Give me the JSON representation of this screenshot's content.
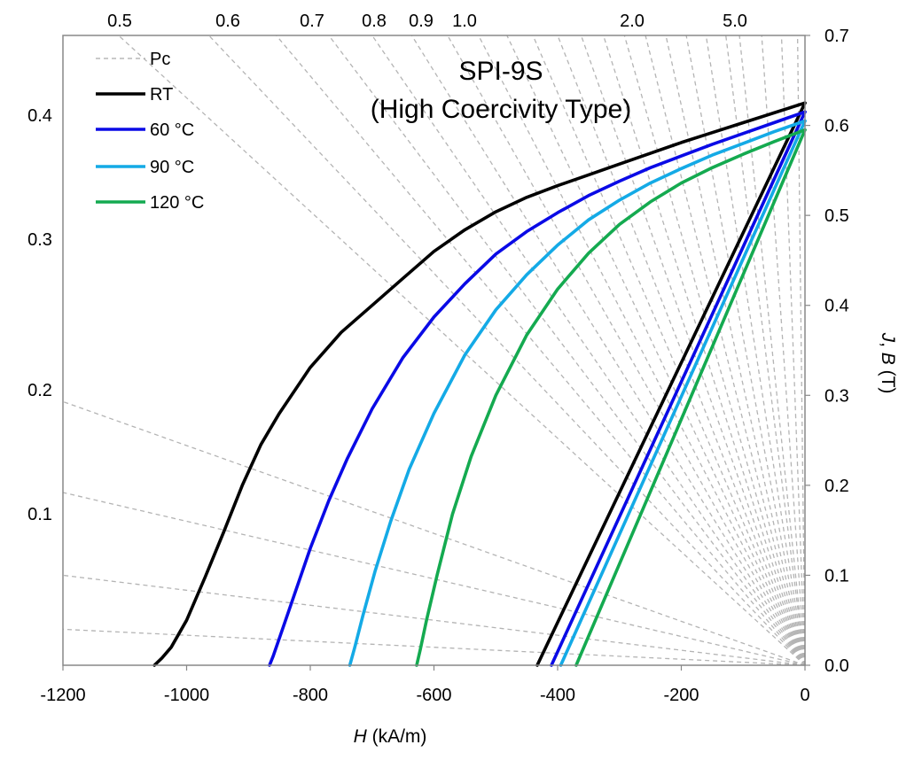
{
  "chart_data": {
    "type": "line",
    "title": "SPI-9S",
    "subtitle": "(High Coercivity Type)",
    "xlabel_italic": "H",
    "xlabel_rest": " (kA/m)",
    "ylabel_right_italic_1": "J",
    "ylabel_right_sep": ", ",
    "ylabel_right_italic_2": "B",
    "ylabel_right_rest": " (T)",
    "xlim": [
      -1200,
      0
    ],
    "ylim_right": [
      0.0,
      0.7
    ],
    "x_ticks": [
      -1200,
      -1000,
      -800,
      -600,
      -400,
      -200,
      0
    ],
    "x_tick_labels": [
      "-1200",
      "-1000",
      "-800",
      "-600",
      "-400",
      "-200",
      "0"
    ],
    "y_right_ticks": [
      0.0,
      0.1,
      0.2,
      0.3,
      0.4,
      0.5,
      0.6,
      0.7
    ],
    "y_right_tick_labels": [
      "0.0",
      "0.1",
      "0.2",
      "0.3",
      "0.4",
      "0.5",
      "0.6",
      "0.7"
    ],
    "left_scale_labels": [
      {
        "label": "0.4",
        "value": 0.4
      },
      {
        "label": "0.3",
        "value": 0.3
      },
      {
        "label": "0.2",
        "value": 0.2
      },
      {
        "label": "0.1",
        "value": 0.1
      }
    ],
    "pc_lines": [
      {
        "label": "0.5",
        "slope_angle": 0.5
      },
      {
        "label": "0.6",
        "slope_angle": 0.6
      },
      {
        "label": "0.7",
        "slope_angle": 0.7
      },
      {
        "label": "0.8",
        "slope_angle": 0.8
      },
      {
        "label": "0.9",
        "slope_angle": 0.9
      },
      {
        "label": "1.0",
        "slope_angle": 1.0
      },
      {
        "label": "2.0",
        "slope_angle": 2.0
      },
      {
        "label": "5.0",
        "slope_angle": 5.0
      }
    ],
    "pc_line_endpoints": [
      {
        "x": -1200,
        "y": 0.293
      },
      {
        "x": -1200,
        "y": 0.192
      },
      {
        "x": -1200,
        "y": 0.1
      },
      {
        "x": -1200,
        "y": 0.04
      },
      {
        "x": -1110,
        "y": 0.7
      },
      {
        "x": -964,
        "y": 0.7
      },
      {
        "x": -855,
        "y": 0.7
      },
      {
        "x": -770,
        "y": 0.7
      },
      {
        "x": -700,
        "y": 0.7
      },
      {
        "x": -636,
        "y": 0.7
      },
      {
        "x": -578,
        "y": 0.7
      },
      {
        "x": -528,
        "y": 0.7
      },
      {
        "x": -482,
        "y": 0.7
      },
      {
        "x": -440,
        "y": 0.7
      },
      {
        "x": -400,
        "y": 0.7
      },
      {
        "x": -362,
        "y": 0.7
      },
      {
        "x": -326,
        "y": 0.7
      },
      {
        "x": -292,
        "y": 0.7
      },
      {
        "x": -258,
        "y": 0.7
      },
      {
        "x": -225,
        "y": 0.7
      },
      {
        "x": -192,
        "y": 0.7
      },
      {
        "x": -160,
        "y": 0.7
      },
      {
        "x": -128,
        "y": 0.7
      },
      {
        "x": -106,
        "y": 0.7
      },
      {
        "x": -70,
        "y": 0.7
      },
      {
        "x": -38,
        "y": 0.7
      },
      {
        "x": -12,
        "y": 0.7
      }
    ],
    "legend": {
      "placement": "top-left",
      "entries": [
        {
          "label": "Pc",
          "color": "#aaaaaa",
          "style": "dashed"
        },
        {
          "label": "RT",
          "color": "#000000",
          "style": "solid"
        },
        {
          "label": "60 °C",
          "color": "#0a0ae6",
          "style": "solid"
        },
        {
          "label": "90 °C",
          "color": "#14aae6",
          "style": "solid"
        },
        {
          "label": "120 °C",
          "color": "#14aa50",
          "style": "solid"
        }
      ]
    },
    "series": [
      {
        "name": "RT",
        "kind": "J",
        "color": "#000000",
        "x": [
          0,
          -50,
          -100,
          -150,
          -200,
          -250,
          -300,
          -350,
          -400,
          -450,
          -500,
          -550,
          -600,
          -650,
          -700,
          -750,
          -800,
          -850,
          -880,
          -910,
          -940,
          -970,
          -1000,
          -1025,
          -1040,
          -1052
        ],
        "y": [
          0.625,
          0.614,
          0.603,
          0.592,
          0.581,
          0.569,
          0.557,
          0.545,
          0.533,
          0.52,
          0.504,
          0.484,
          0.46,
          0.43,
          0.4,
          0.37,
          0.331,
          0.28,
          0.245,
          0.2,
          0.148,
          0.098,
          0.05,
          0.02,
          0.008,
          0.0
        ]
      },
      {
        "name": "RT",
        "kind": "B",
        "color": "#000000",
        "x": [
          0,
          -433
        ],
        "y": [
          0.625,
          0.0
        ]
      },
      {
        "name": "60 °C",
        "kind": "J",
        "color": "#0a0ae6",
        "x": [
          0,
          -50,
          -100,
          -150,
          -200,
          -250,
          -300,
          -350,
          -400,
          -450,
          -500,
          -550,
          -600,
          -650,
          -700,
          -740,
          -770,
          -800,
          -825,
          -845,
          -860,
          -866
        ],
        "y": [
          0.615,
          0.603,
          0.591,
          0.579,
          0.566,
          0.553,
          0.538,
          0.522,
          0.503,
          0.482,
          0.457,
          0.424,
          0.387,
          0.342,
          0.285,
          0.23,
          0.183,
          0.13,
          0.08,
          0.04,
          0.01,
          0.0
        ]
      },
      {
        "name": "60 °C",
        "kind": "B",
        "color": "#0a0ae6",
        "x": [
          0,
          -410
        ],
        "y": [
          0.615,
          0.0
        ]
      },
      {
        "name": "90 °C",
        "kind": "J",
        "color": "#14aae6",
        "x": [
          0,
          -50,
          -100,
          -150,
          -200,
          -250,
          -300,
          -350,
          -400,
          -450,
          -500,
          -550,
          -600,
          -640,
          -670,
          -695,
          -715,
          -728,
          -736
        ],
        "y": [
          0.605,
          0.593,
          0.58,
          0.567,
          0.552,
          0.536,
          0.517,
          0.495,
          0.467,
          0.434,
          0.395,
          0.345,
          0.28,
          0.218,
          0.16,
          0.105,
          0.055,
          0.02,
          0.0
        ]
      },
      {
        "name": "90 °C",
        "kind": "B",
        "color": "#14aae6",
        "x": [
          0,
          -395
        ],
        "y": [
          0.605,
          0.0
        ]
      },
      {
        "name": "120 °C",
        "kind": "J",
        "color": "#14aa50",
        "x": [
          0,
          -50,
          -100,
          -150,
          -200,
          -250,
          -300,
          -350,
          -400,
          -450,
          -500,
          -540,
          -570,
          -595,
          -612,
          -622,
          -628
        ],
        "y": [
          0.595,
          0.582,
          0.568,
          0.553,
          0.536,
          0.515,
          0.49,
          0.458,
          0.418,
          0.367,
          0.3,
          0.232,
          0.168,
          0.1,
          0.05,
          0.018,
          0.0
        ]
      },
      {
        "name": "120 °C",
        "kind": "B",
        "color": "#14aa50",
        "x": [
          0,
          -370
        ],
        "y": [
          0.595,
          0.0
        ]
      }
    ]
  }
}
